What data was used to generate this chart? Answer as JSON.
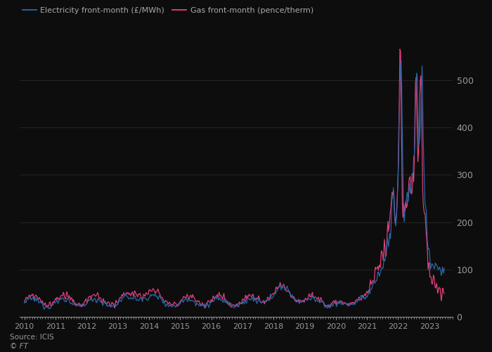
{
  "electricity_label": "Electricity front-month (£/MWh)",
  "gas_label": "Gas front-month (pence/therm)",
  "source": "Source: ICIS",
  "copyright": "© FT",
  "electricity_color": "#2a6aad",
  "gas_color": "#e8417e",
  "background_color": "#0d0d0d",
  "text_color": "#999999",
  "grid_color": "#2a2a2a",
  "ylim": [
    0,
    580
  ],
  "yticks": [
    0,
    100,
    200,
    300,
    400,
    500
  ],
  "linewidth": 0.85,
  "legend_color": "#aaaaaa"
}
